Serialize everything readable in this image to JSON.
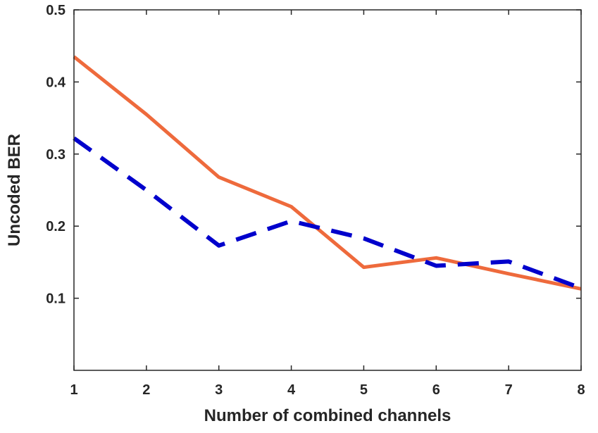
{
  "chart_data": {
    "type": "line",
    "title": "",
    "xlabel": "Number of combined channels",
    "ylabel": "Uncoded BER",
    "xlim": [
      1,
      8
    ],
    "ylim": [
      0,
      0.5
    ],
    "xticks": [
      1,
      2,
      3,
      4,
      5,
      6,
      7,
      8
    ],
    "yticks": [
      0.1,
      0.2,
      0.3,
      0.4,
      0.5
    ],
    "x": [
      1,
      2,
      3,
      4,
      5,
      6,
      7,
      8
    ],
    "grid": false,
    "series": [
      {
        "name": "solid-orange",
        "style": "solid",
        "color": "#EE6A3C",
        "values": [
          0.435,
          0.355,
          0.268,
          0.227,
          0.143,
          0.156,
          0.134,
          0.113
        ]
      },
      {
        "name": "dashed-blue",
        "style": "dashed",
        "color": "#0000CC",
        "values": [
          0.322,
          0.25,
          0.173,
          0.207,
          0.183,
          0.145,
          0.151,
          0.114
        ]
      }
    ]
  }
}
